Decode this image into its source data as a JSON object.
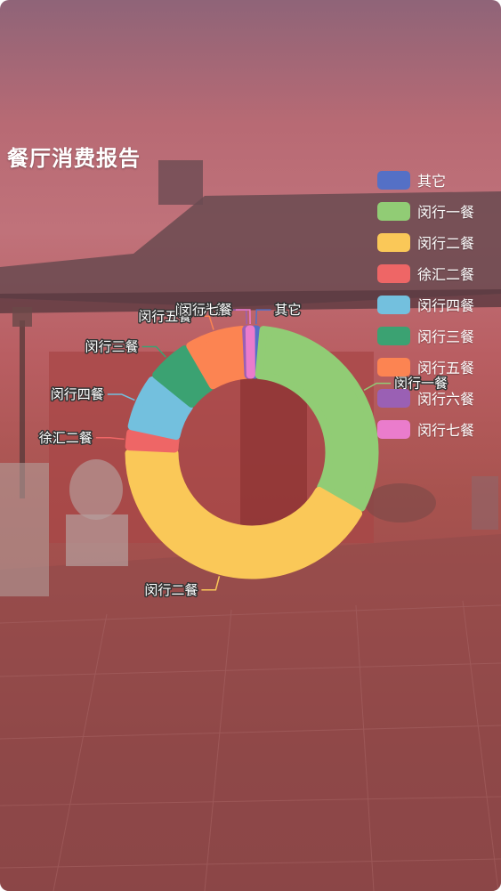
{
  "page": {
    "title": "餐厅消费报告"
  },
  "chart_data": {
    "type": "pie",
    "categories": [
      "其它",
      "闵行一餐",
      "闵行二餐",
      "徐汇二餐",
      "闵行四餐",
      "闵行三餐",
      "闵行五餐",
      "闵行六餐",
      "闵行七餐"
    ],
    "values": [
      1,
      30,
      40,
      2.5,
      7,
      5.5,
      7.5,
      0.4,
      0.4
    ],
    "colors": [
      "#5470c6",
      "#91cc75",
      "#fac858",
      "#ee6666",
      "#73c0de",
      "#3ba272",
      "#fc8452",
      "#9a60b4",
      "#ea7ccc"
    ],
    "legend_position": "top-right",
    "title": "餐厅消费报告"
  }
}
